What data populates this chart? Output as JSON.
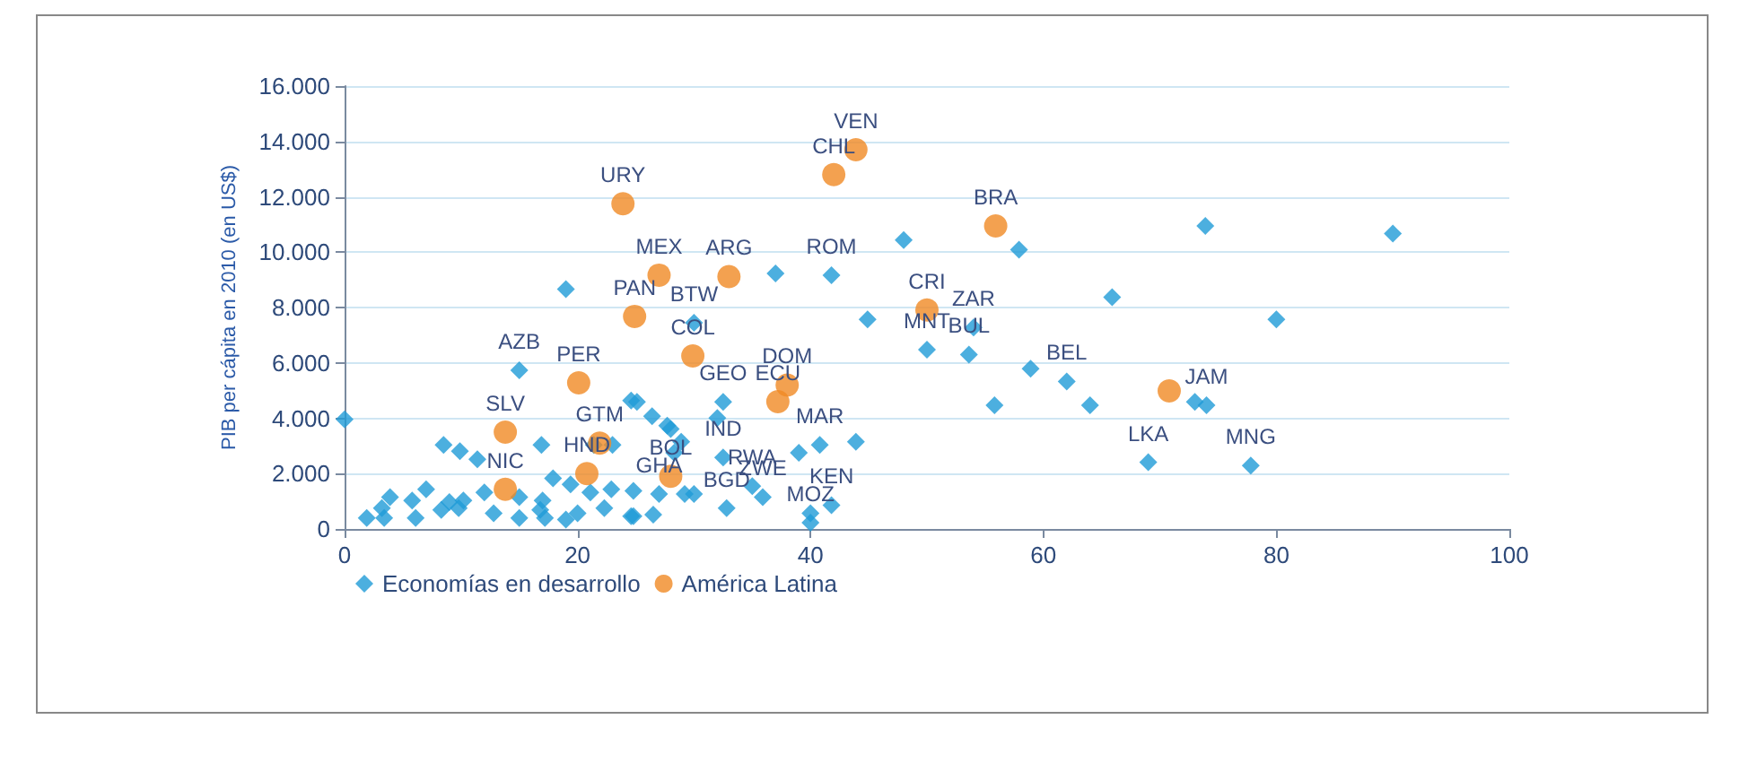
{
  "chart_data": {
    "type": "scatter",
    "ylabel": "PIB per cápita en 2010 (en US$)",
    "xlim": [
      0,
      100
    ],
    "xticks": [
      0,
      20,
      40,
      60,
      80,
      100
    ],
    "ylim": [
      0,
      16000
    ],
    "yticks": [
      {
        "value": 0,
        "label": "0"
      },
      {
        "value": 2000,
        "label": "2.000"
      },
      {
        "value": 4000,
        "label": "4.000"
      },
      {
        "value": 6000,
        "label": "6.000"
      },
      {
        "value": 8000,
        "label": "8.000"
      },
      {
        "value": 10000,
        "label": "10.000"
      },
      {
        "value": 12000,
        "label": "12.000"
      },
      {
        "value": 14000,
        "label": "14.000"
      },
      {
        "value": 16000,
        "label": "16.000"
      }
    ],
    "grid": "y",
    "legend": "bottom left",
    "series": [
      {
        "name": "Economías en desarrollo",
        "color": "#1f9bd7",
        "marker": "diamond",
        "x": [
          0,
          19,
          37,
          30,
          15,
          48,
          57.9,
          41.8,
          44.9,
          54,
          50,
          53.6,
          65.9,
          58.9,
          62,
          64,
          73,
          74,
          73.9,
          90,
          80,
          69,
          77.8,
          55.8,
          32.5,
          32,
          39,
          40.8,
          43.9,
          32.5,
          35,
          32.8,
          40,
          41.8,
          40,
          35.9,
          26.4,
          24.6,
          28,
          28.3,
          29.2,
          30,
          24.8,
          26.5,
          24.6,
          8.5,
          9.9,
          11.4,
          16.9,
          25.1,
          27.7,
          28.9,
          23,
          21.4,
          17.9,
          12,
          15,
          17,
          19.4,
          21.1,
          22.9,
          27,
          1.9,
          3.2,
          3.9,
          3.4,
          6.1,
          5.8,
          7,
          8.3,
          9,
          9.8,
          10.2,
          12.8,
          15,
          16.8,
          17.2,
          19,
          20,
          22.3,
          24.8
        ],
        "values": [
          3960,
          8660,
          9230,
          7450,
          5730,
          10440,
          10090,
          9170,
          7570,
          7280,
          6480,
          6300,
          8370,
          5790,
          5330,
          4470,
          4590,
          4470,
          10950,
          10670,
          7570,
          2410,
          2290,
          4470,
          4590,
          4010,
          2750,
          3040,
          3150,
          2580,
          1550,
          750,
          570,
          860,
          230,
          1150,
          4070,
          4640,
          3610,
          2750,
          1260,
          1260,
          1380,
          520,
          460,
          3040,
          2810,
          2520,
          3040,
          4590,
          3730,
          3150,
          3040,
          3040,
          1830,
          1320,
          1150,
          1030,
          1610,
          1320,
          1430,
          1260,
          400,
          750,
          1150,
          400,
          400,
          1030,
          1430,
          690,
          970,
          750,
          1030,
          570,
          400,
          690,
          400,
          340,
          570,
          750,
          460
        ]
      },
      {
        "name": "América Latina",
        "color": "#f08a24",
        "marker": "circle",
        "x": [
          43.9,
          42,
          23.9,
          27,
          33,
          24.9,
          29.9,
          55.9,
          50,
          20.1,
          38,
          37.2,
          70.8,
          13.8,
          13.8,
          21.9,
          20.8,
          28
        ],
        "values": [
          13700,
          12800,
          11750,
          9170,
          9120,
          7680,
          6250,
          10950,
          7910,
          5280,
          5200,
          4600,
          4990,
          3500,
          1430,
          3100,
          2000,
          1900
        ]
      }
    ],
    "annotations": [
      {
        "text": "VEN",
        "x": 43.9,
        "y": 13700
      },
      {
        "text": "CHL",
        "x": 42,
        "y": 12800
      },
      {
        "text": "URY",
        "x": 23.9,
        "y": 11750
      },
      {
        "text": "MEX",
        "x": 27,
        "y": 9170
      },
      {
        "text": "ARG",
        "x": 33,
        "y": 9120
      },
      {
        "text": "PAN",
        "x": 24.9,
        "y": 7680
      },
      {
        "text": "BTW",
        "x": 30,
        "y": 7450
      },
      {
        "text": "COL",
        "x": 29.9,
        "y": 6250
      },
      {
        "text": "AZB",
        "x": 15,
        "y": 5730
      },
      {
        "text": "PER",
        "x": 20.1,
        "y": 5280
      },
      {
        "text": "SLV",
        "x": 13.8,
        "y": 3500
      },
      {
        "text": "GTM",
        "x": 21.9,
        "y": 3100
      },
      {
        "text": "NIC",
        "x": 13.8,
        "y": 1430
      },
      {
        "text": "HND",
        "x": 20.8,
        "y": 2000
      },
      {
        "text": "GHA",
        "x": 27,
        "y": 1260
      },
      {
        "text": "BOL",
        "x": 28,
        "y": 1900
      },
      {
        "text": "GEO",
        "x": 32.5,
        "y": 4590
      },
      {
        "text": "ECU",
        "x": 37.2,
        "y": 4600
      },
      {
        "text": "MAR",
        "x": 40.8,
        "y": 3040
      },
      {
        "text": "DOM",
        "x": 38,
        "y": 5200
      },
      {
        "text": "IND",
        "x": 32.5,
        "y": 2580
      },
      {
        "text": "RWA",
        "x": 35,
        "y": 1550
      },
      {
        "text": "ZWE",
        "x": 35.9,
        "y": 1150
      },
      {
        "text": "BGD",
        "x": 32.8,
        "y": 750
      },
      {
        "text": "KEN",
        "x": 41.8,
        "y": 860
      },
      {
        "text": "MOZ",
        "x": 40,
        "y": 230
      },
      {
        "text": "ROM",
        "x": 41.8,
        "y": 9170
      },
      {
        "text": "CRI",
        "x": 50,
        "y": 7910
      },
      {
        "text": "ZAR",
        "x": 54,
        "y": 7280
      },
      {
        "text": "MNT",
        "x": 50,
        "y": 6480
      },
      {
        "text": "BUL",
        "x": 53.6,
        "y": 6300
      },
      {
        "text": "BEL",
        "x": 62,
        "y": 5330
      },
      {
        "text": "LKA",
        "x": 69,
        "y": 2410
      },
      {
        "text": "JAM",
        "x": 74,
        "y": 4470
      },
      {
        "text": "MNG",
        "x": 77.8,
        "y": 2290
      },
      {
        "text": "BRA",
        "x": 55.9,
        "y": 10950
      }
    ]
  }
}
